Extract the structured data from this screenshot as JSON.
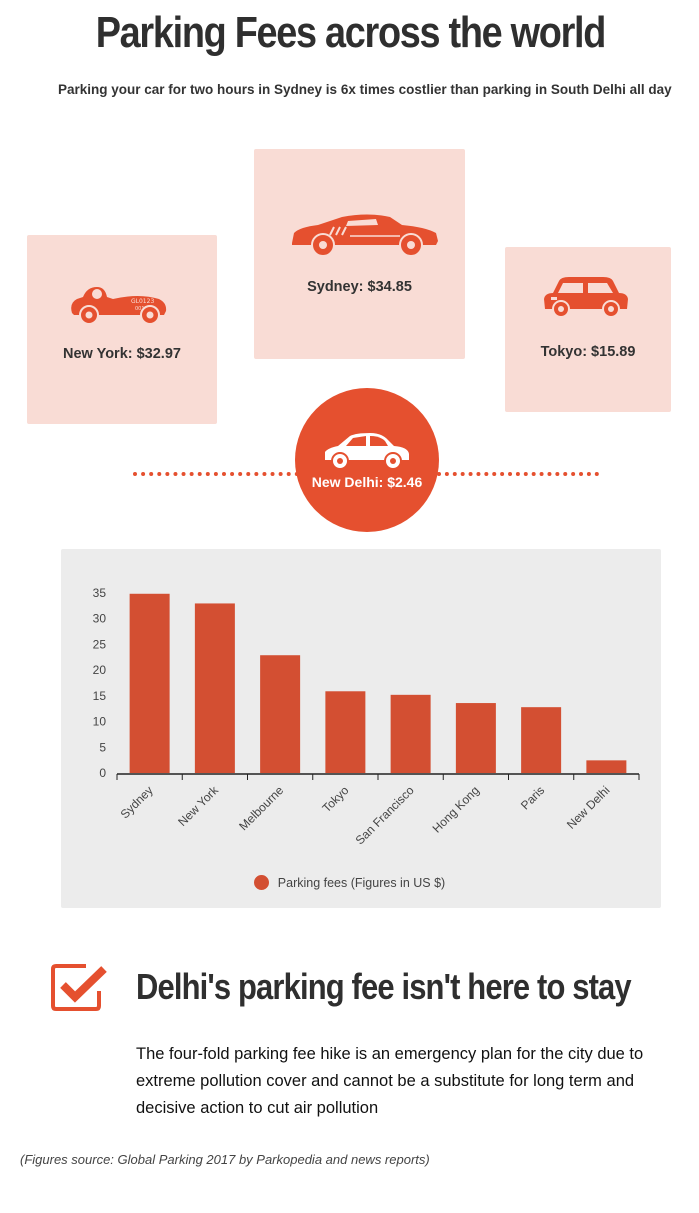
{
  "title": "Parking Fees across the world",
  "subtitle": "Parking your car for two hours in Sydney is 6x times costlier than parking in South Delhi all day",
  "cards": {
    "new_york": {
      "label": "New York: $32.97",
      "icon": "vintage-car-icon"
    },
    "sydney": {
      "label": "Sydney: $34.85",
      "icon": "sports-car-icon"
    },
    "tokyo": {
      "label": "Tokyo: $15.89",
      "icon": "mini-car-icon"
    },
    "new_delhi": {
      "label": "New Delhi: $2.46",
      "icon": "sedan-car-icon"
    }
  },
  "colors": {
    "accent": "#e5502f",
    "bar": "#d34f32",
    "card_bg": "#f9dcd5",
    "panel_bg": "#ececec"
  },
  "chart_data": {
    "type": "bar",
    "categories": [
      "Sydney",
      "New York",
      "Melbourne",
      "Tokyo",
      "San Francisco",
      "Hong Kong",
      "Paris",
      "New Delhi"
    ],
    "values": [
      34.85,
      32.97,
      22.9,
      15.89,
      15.2,
      13.6,
      12.8,
      2.46
    ],
    "ylim": [
      0,
      35
    ],
    "yticks": [
      0,
      5,
      10,
      15,
      20,
      25,
      30,
      35
    ],
    "legend": "Parking fees (Figures in US $)",
    "legend_position": "bottom",
    "grid": false
  },
  "callout": {
    "icon": "checkbox-checked-icon",
    "heading": "Delhi's parking fee isn't here to stay",
    "body": "The four-fold parking fee hike is an emergency plan for the city due to extreme pollution cover and cannot be a substitute for long term and decisive action to cut air pollution"
  },
  "source": "(Figures source: Global Parking 2017 by Parkopedia and news reports)"
}
